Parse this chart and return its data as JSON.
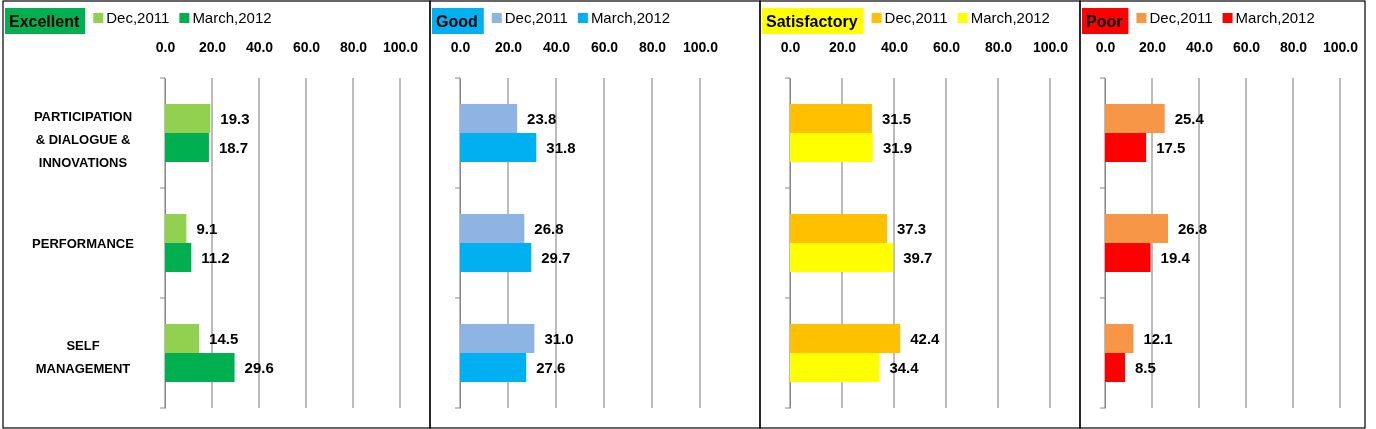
{
  "chart_data": [
    {
      "type": "bar",
      "orientation": "horizontal",
      "title": "Excellent",
      "categories": [
        "PARTICIPATION & DIALOGUE & INNOVATIONS",
        "PERFORMANCE",
        "SELF MANAGEMENT"
      ],
      "xlim": [
        0,
        100
      ],
      "xticks": [
        {
          "value": 0,
          "label": "0.0"
        },
        {
          "value": 20,
          "label": "20.0"
        },
        {
          "value": 40,
          "label": "40.0"
        },
        {
          "value": 60,
          "label": "60.0"
        },
        {
          "value": 80,
          "label": "80.0"
        },
        {
          "value": 100,
          "label": "100.0"
        }
      ],
      "grid": "x",
      "legend": "top",
      "series": [
        {
          "name": "Dec,2011",
          "color": "#92d050",
          "values": [
            19.3,
            9.1,
            14.5
          ],
          "value_labels": [
            "19.3",
            "9.1",
            "14.5"
          ]
        },
        {
          "name": "March,2012",
          "color": "#00b050",
          "values": [
            18.7,
            11.2,
            29.6
          ],
          "value_labels": [
            "18.7",
            "11.2",
            "29.6"
          ]
        }
      ]
    },
    {
      "type": "bar",
      "orientation": "horizontal",
      "title": "Good",
      "categories": [
        null,
        null,
        null
      ],
      "tick_labels": "x",
      "xlim": [
        0,
        100
      ],
      "xticks": [
        {
          "value": 0,
          "label": "0.0"
        },
        {
          "value": 20,
          "label": "20.0"
        },
        {
          "value": 40,
          "label": "40.0"
        },
        {
          "value": 60,
          "label": "60.0"
        },
        {
          "value": 80,
          "label": "80.0"
        },
        {
          "value": 100,
          "label": "100.0"
        }
      ],
      "grid": "x",
      "legend": "top",
      "series": [
        {
          "name": "Dec,2011",
          "color": "#8eb4e3",
          "values": [
            23.8,
            26.8,
            31.0
          ],
          "value_labels": [
            "23.8",
            "26.8",
            "31.0"
          ]
        },
        {
          "name": "March,2012",
          "color": "#00b0f0",
          "values": [
            31.8,
            29.7,
            27.6
          ],
          "value_labels": [
            "31.8",
            "29.7",
            "27.6"
          ]
        }
      ]
    },
    {
      "type": "bar",
      "orientation": "horizontal",
      "title": "Satisfactory",
      "categories": [
        null,
        null,
        null
      ],
      "tick_labels": "x",
      "xlim": [
        0,
        100
      ],
      "xticks": [
        {
          "value": 0,
          "label": "0.0"
        },
        {
          "value": 20,
          "label": "20.0"
        },
        {
          "value": 40,
          "label": "40.0"
        },
        {
          "value": 60,
          "label": "60.0"
        },
        {
          "value": 80,
          "label": "80.0"
        },
        {
          "value": 100,
          "label": "100.0"
        }
      ],
      "grid": "x",
      "legend": "top",
      "series": [
        {
          "name": "Dec,2011",
          "color": "#ffc000",
          "values": [
            31.5,
            37.3,
            42.4
          ],
          "value_labels": [
            "31.5",
            "37.3",
            "42.4"
          ]
        },
        {
          "name": "March,2012",
          "color": "#ffff00",
          "values": [
            31.9,
            39.7,
            34.4
          ],
          "value_labels": [
            "31.9",
            "39.7",
            "34.4"
          ]
        }
      ]
    },
    {
      "type": "bar",
      "orientation": "horizontal",
      "title": "Poor",
      "categories": [
        null,
        null,
        null
      ],
      "tick_labels": "x",
      "xlim": [
        0,
        100
      ],
      "xticks": [
        {
          "value": 0,
          "label": "0.0"
        },
        {
          "value": 20,
          "label": "20.0"
        },
        {
          "value": 40,
          "label": "40.0"
        },
        {
          "value": 60,
          "label": "60.0"
        },
        {
          "value": 80,
          "label": "80.0"
        },
        {
          "value": 100,
          "label": "100.0"
        }
      ],
      "grid": "x",
      "legend": "top",
      "series": [
        {
          "name": "Dec,2011",
          "color": "#f79646",
          "values": [
            25.4,
            26.8,
            12.1
          ],
          "value_labels": [
            "25.4",
            "26.8",
            "12.1"
          ]
        },
        {
          "name": "March,2012",
          "color": "#ff0000",
          "values": [
            17.5,
            19.4,
            8.5
          ],
          "value_labels": [
            "17.5",
            "19.4",
            "8.5"
          ]
        }
      ]
    }
  ]
}
